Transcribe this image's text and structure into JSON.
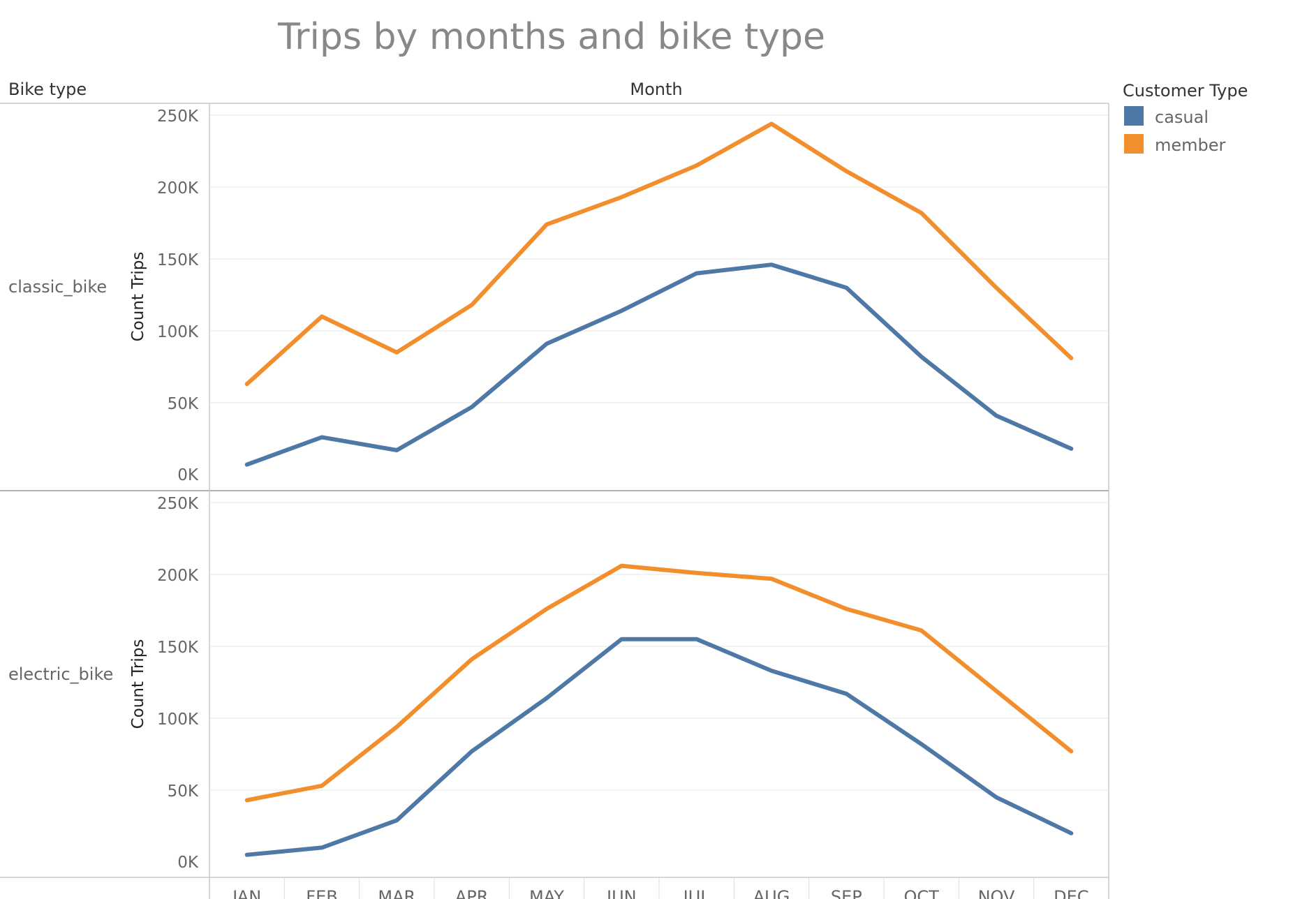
{
  "colors": {
    "casual": "#4E79A7",
    "member": "#F28E2B",
    "text_main": "#333333",
    "text_muted": "#666666",
    "title": "#888888",
    "grid": "#e6e6e6",
    "frame": "#c8c8c8"
  },
  "chart_data": {
    "type": "line",
    "title": "Trips by months and bike type",
    "row_header": "Bike type",
    "column_header": "Month",
    "ylabel": "Count Trips",
    "ylim": [
      0,
      250000
    ],
    "y_ticks": [
      0,
      50000,
      100000,
      150000,
      200000,
      250000
    ],
    "y_tick_labels": [
      "0K",
      "50K",
      "100K",
      "150K",
      "200K",
      "250K"
    ],
    "categories": [
      "JAN",
      "FEB",
      "MAR",
      "APR",
      "MAY",
      "JUN",
      "JUL",
      "AUG",
      "SEP",
      "OCT",
      "NOV",
      "DEC"
    ],
    "grid": true,
    "legend": {
      "title": "Customer Type",
      "position": "top-right",
      "entries": [
        "casual",
        "member"
      ]
    },
    "panels": [
      {
        "label": "classic_bike",
        "series": [
          {
            "name": "casual",
            "values": [
              7000,
              26000,
              17000,
              47000,
              91000,
              114000,
              140000,
              146000,
              130000,
              82000,
              41000,
              18000
            ]
          },
          {
            "name": "member",
            "values": [
              63000,
              110000,
              85000,
              118000,
              174000,
              193000,
              215000,
              244000,
              211000,
              182000,
              130000,
              81000
            ]
          }
        ]
      },
      {
        "label": "electric_bike",
        "series": [
          {
            "name": "casual",
            "values": [
              5000,
              10000,
              29000,
              77000,
              114000,
              155000,
              155000,
              133000,
              117000,
              82000,
              45000,
              20000
            ]
          },
          {
            "name": "member",
            "values": [
              43000,
              53000,
              94000,
              141000,
              176000,
              206000,
              201000,
              197000,
              176000,
              161000,
              119000,
              77000
            ]
          }
        ]
      }
    ]
  }
}
